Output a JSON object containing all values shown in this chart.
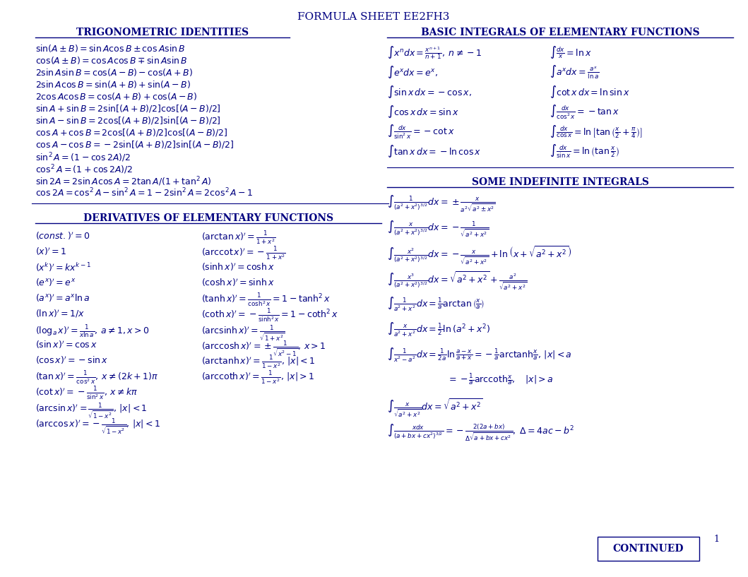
{
  "title": "FORMULA SHEET EE2FH3",
  "bg_color": "#ffffff",
  "text_color": "#000080",
  "title_fontsize": 11,
  "section_fontsize": 10,
  "formula_fontsize": 9,
  "trig_title": "TRIGONOMETRIC IDENTITIES",
  "trig_formulas": [
    "$\\sin(A \\pm B) = \\sin A\\cos B \\pm \\cos A\\sin B$",
    "$\\cos(A \\pm B) = \\cos A\\cos B \\mp \\sin A\\sin B$",
    "$2\\sin A\\sin B = \\cos(A-B) - \\cos(A+B)$",
    "$2\\sin A\\cos B = \\sin(A+B) + \\sin(A-B)$",
    "$2\\cos A\\cos B = \\cos(A+B) + \\cos(A-B)$",
    "$\\sin A + \\sin B = 2\\sin[(A+B)/2]\\cos[(A-B)/2]$",
    "$\\sin A - \\sin B = 2\\cos[(A+B)/2]\\sin[(A-B)/2]$",
    "$\\cos A + \\cos B = 2\\cos[(A+B)/2]\\cos[(A-B)/2]$",
    "$\\cos A - \\cos B = -2\\sin[(A+B)/2]\\sin[(A-B)/2]$",
    "$\\sin^2 A = (1 - \\cos 2A)/2$",
    "$\\cos^2 A = (1 + \\cos 2A)/2$",
    "$\\sin 2A = 2\\sin A\\cos A = 2\\tan A/(1+\\tan^2 A)$",
    "$\\cos 2A = \\cos^2 A - \\sin^2 A = 1 - 2\\sin^2 A = 2\\cos^2 A - 1$"
  ],
  "deriv_title": "DERIVATIVES OF ELEMENTARY FUNCTIONS",
  "deriv_left": [
    "$(const.)' = 0$",
    "$(x)' = 1$",
    "$(x^k)' = kx^{k-1}$",
    "$(e^x)' = e^x$",
    "$(a^x)' = a^x \\ln a$",
    "$(\\ln x)' = 1/x$",
    "$(\\log_a x)' = \\frac{1}{x\\ln a},\\, a\\neq 1, x>0$",
    "$(\\sin x)' = \\cos x$",
    "$(\\cos x)' = -\\sin x$",
    "$(\\tan x)' = \\frac{1}{\\cos^2 x},\\, x\\neq(2k+1)\\pi$",
    "$(\\cot x)' = -\\frac{1}{\\sin^2 x},\\, x\\neq k\\pi$",
    "$(\\arcsin x)' = \\frac{1}{\\sqrt{1-x^2}},\\, |x|<1$",
    "$(\\arccos x)' = -\\frac{1}{\\sqrt{1-x^2}},\\, |x|<1$"
  ],
  "deriv_right": [
    "$(\\arctan x)' = \\frac{1}{1+x^2}$",
    "$(\\mathrm{arc}\\cot x)' = -\\frac{1}{1+x^2}$",
    "$(\\sinh x)' = \\cosh x$",
    "$(\\cosh x)' = \\sinh x$",
    "$(\\tanh x)' = \\frac{1}{\\cosh^2 x} = 1 - \\tanh^2 x$",
    "$(\\coth x)' = -\\frac{1}{\\sinh^2 x} = 1 - \\coth^2 x$",
    "$(\\mathrm{arcsinh}\\, x)' = \\frac{1}{\\sqrt{1+x^2}}$",
    "$(\\mathrm{arccosh}\\, x)' = \\pm\\frac{1}{\\sqrt{x^2-1}},\\, x>1$",
    "$(\\mathrm{arctanh}\\, x)' = \\frac{1}{1-x^2},\\, |x|<1$",
    "$(\\mathrm{arccoth}\\, x)' = \\frac{1}{1-x^2},\\, |x|>1$"
  ],
  "basic_int_title": "BASIC INTEGRALS OF ELEMENTARY FUNCTIONS",
  "basic_int_col1": [
    "$\\int x^n dx = \\frac{x^{n+1}}{n+1},\\; n\\neq -1$",
    "$\\int e^x dx = e^x,$",
    "$\\int \\sin x\\, dx = -\\cos x,$",
    "$\\int \\cos x\\, dx = \\sin x$",
    "$\\int \\frac{dx}{\\sin^2 x} = -\\cot x$",
    "$\\int \\tan x\\, dx = -\\ln\\cos x$"
  ],
  "basic_int_col2": [
    "$\\int \\frac{dx}{x} = \\ln x$",
    "$\\int a^x dx = \\frac{a^x}{\\ln a}$",
    "$\\int \\cot x\\, dx = \\ln\\sin x$",
    "$\\int \\frac{dx}{\\cos^2 x} = -\\tan x$",
    "$\\int \\frac{dx}{\\cos x} = \\ln\\left[\\tan\\left(\\frac{x}{2}+\\frac{\\pi}{4}\\right)\\right]$",
    "$\\int \\frac{dx}{\\sin x} = \\ln\\left(\\tan\\frac{x}{2}\\right)$"
  ],
  "indef_int_title": "SOME INDEFINITE INTEGRALS",
  "indef_int_formulas": [
    "$\\int\\frac{1}{(a^2+x^2)^{3/2}}dx = \\pm\\frac{x}{a^2\\sqrt{a^2\\pm x^2}}$",
    "$\\int\\frac{x}{(a^2+x^2)^{3/2}}dx = -\\frac{1}{\\sqrt{a^2+x^2}}$",
    "$\\int\\frac{x^2}{(a^2+x^2)^{3/2}}dx = -\\frac{x}{\\sqrt{a^2+x^2}}+\\ln\\left(x+\\sqrt{a^2+x^2}\\right)$",
    "$\\int\\frac{x^3}{(a^2+x^2)^{3/2}}dx = \\sqrt{a^2+x^2}+\\frac{a^2}{\\sqrt{a^2+x^2}}$",
    "$\\int\\frac{1}{a^2+x^2}dx = \\frac{1}{a}\\arctan\\left(\\frac{x}{a}\\right)$",
    "$\\int\\frac{x}{a^2+x^2}dx = \\frac{1}{2}\\ln\\left(a^2+x^2\\right)$",
    "$\\int\\frac{1}{x^2-a^2}dx = \\frac{1}{2a}\\ln\\frac{a-x}{a+x}=-\\frac{1}{a}\\mathrm{arctanh}\\frac{x}{a},\\, |x|<a$",
    "$\\quad\\quad\\quad\\quad\\quad\\quad\\quad = -\\frac{1}{a}\\mathrm{arccoth}\\frac{x}{a},\\quad |x|>a$",
    "$\\int\\frac{x}{\\sqrt{a^2+x^2}}dx = \\sqrt{a^2+x^2}$",
    "$\\int\\frac{xdx}{(a+bx+cx^2)^{3/2}} = -\\frac{2(2a+bx)}{\\Delta\\sqrt{a+bx+cx^2}},\\; \\Delta=4ac-b^2$"
  ]
}
